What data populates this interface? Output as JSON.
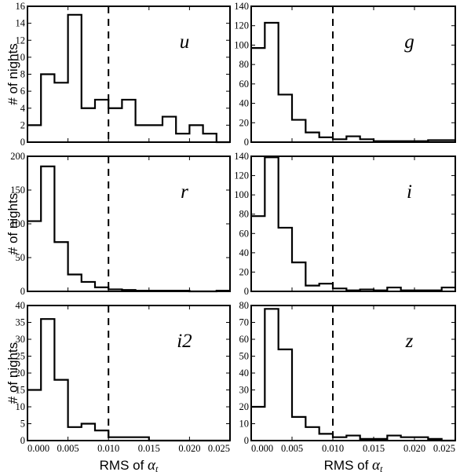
{
  "chart_data": {
    "type": "histogram-grid",
    "shared_xlabel": {
      "prefix": "RMS of ",
      "symbol": "α",
      "subscript": "t"
    },
    "shared_ylabel": "# of nights",
    "xlim": [
      0.0,
      0.025
    ],
    "xticks": [
      "0.000",
      "0.005",
      "0.010",
      "0.015",
      "0.020",
      "0.025"
    ],
    "bin_edges": [
      0.0,
      0.0016667,
      0.0033333,
      0.005,
      0.0066667,
      0.0083333,
      0.01,
      0.0116667,
      0.0133333,
      0.015,
      0.0166667,
      0.0183333,
      0.02,
      0.0216667,
      0.0233333,
      0.025
    ],
    "threshold": 0.01,
    "line_style": "black step histogram, dashed vertical threshold line",
    "panels": [
      {
        "band": "u",
        "ylim": [
          0,
          16
        ],
        "yticks": [
          0,
          2,
          4,
          6,
          8,
          10,
          12,
          14,
          16
        ],
        "counts": [
          2,
          8,
          7,
          15,
          4,
          5,
          4,
          5,
          2,
          2,
          3,
          1,
          2,
          1,
          0
        ]
      },
      {
        "band": "g",
        "ylim": [
          0,
          140
        ],
        "yticks": [
          0,
          20,
          40,
          60,
          80,
          100,
          120,
          140
        ],
        "counts": [
          97,
          123,
          49,
          23,
          10,
          5,
          3,
          6,
          3,
          1,
          1,
          1,
          1,
          2,
          2
        ]
      },
      {
        "band": "r",
        "ylim": [
          0,
          200
        ],
        "yticks": [
          0,
          50,
          100,
          150,
          200
        ],
        "counts": [
          104,
          185,
          73,
          25,
          14,
          6,
          3,
          2,
          1,
          1,
          1,
          1,
          0,
          0,
          1
        ]
      },
      {
        "band": "i",
        "ylim": [
          0,
          140
        ],
        "yticks": [
          0,
          20,
          40,
          60,
          80,
          100,
          120,
          140
        ],
        "counts": [
          78,
          139,
          66,
          30,
          6,
          8,
          3,
          1,
          2,
          1,
          4,
          1,
          1,
          1,
          4
        ]
      },
      {
        "band": "i2",
        "ylim": [
          0,
          40
        ],
        "yticks": [
          0,
          5,
          10,
          15,
          20,
          25,
          30,
          35,
          40
        ],
        "counts": [
          15,
          36,
          18,
          4,
          5,
          3,
          1,
          1,
          1,
          0,
          0,
          0,
          0,
          0,
          0
        ]
      },
      {
        "band": "z",
        "ylim": [
          0,
          80
        ],
        "yticks": [
          0,
          10,
          20,
          30,
          40,
          50,
          60,
          70,
          80
        ],
        "counts": [
          20,
          78,
          54,
          14,
          8,
          4,
          2,
          3,
          1,
          1,
          3,
          2,
          2,
          1,
          0
        ]
      }
    ]
  }
}
